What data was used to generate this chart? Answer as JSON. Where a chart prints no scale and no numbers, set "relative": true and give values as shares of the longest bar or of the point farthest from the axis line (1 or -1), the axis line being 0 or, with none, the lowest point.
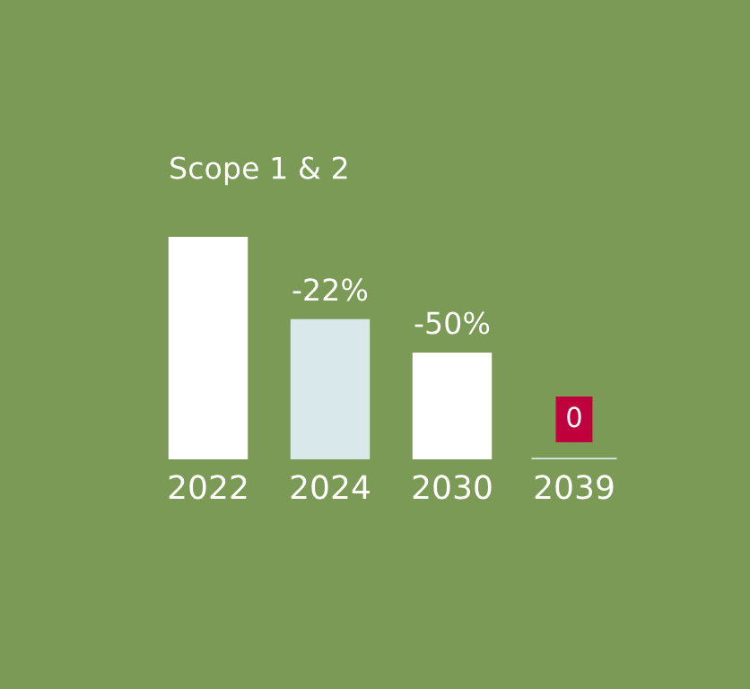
{
  "chart_data": {
    "type": "bar",
    "title": "Scope 1 & 2",
    "categories": [
      "2022",
      "2024",
      "2030",
      "2039"
    ],
    "values": [
      1,
      0.63,
      0.48,
      0
    ],
    "colors": [
      "#ffffff",
      "#d9e8ea",
      "#ffffff",
      "#c0003c"
    ],
    "annotations": [
      {
        "text": "-22%",
        "x": "2024",
        "y": 0.63
      },
      {
        "text": "-50%",
        "x": "2030",
        "y": 0.48
      },
      {
        "text": "0",
        "x": "2039",
        "y": 0
      }
    ],
    "relative": true,
    "grid": false,
    "legend": false
  }
}
